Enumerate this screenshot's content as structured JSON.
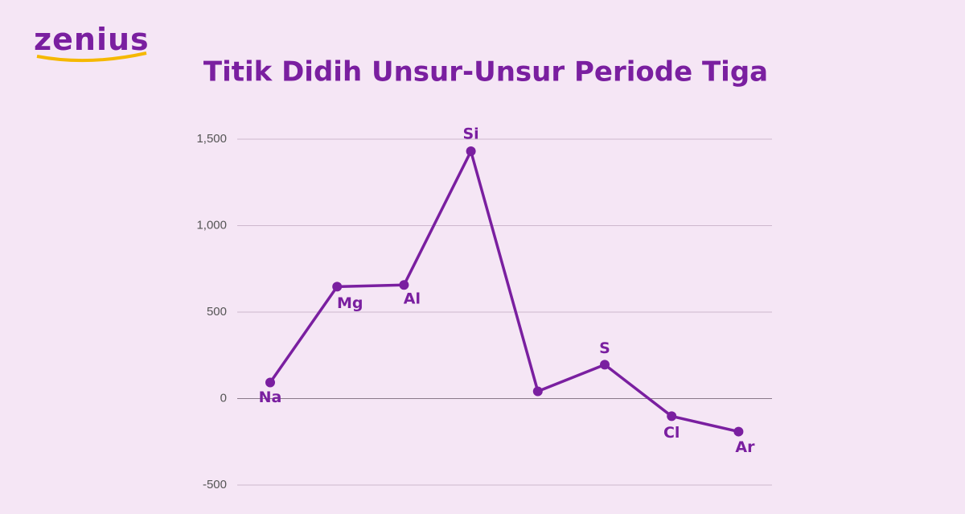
{
  "logo": "zenius",
  "chart_data": {
    "type": "line",
    "title": "Titik Didih Unsur-Unsur Periode Tiga",
    "categories": [
      "Na",
      "Mg",
      "Al",
      "Si",
      null,
      "S",
      "Cl",
      "Ar"
    ],
    "values": [
      93,
      647,
      657,
      1430,
      42,
      196,
      -102,
      -191
    ],
    "color": "#7a1fa0",
    "ylim": [
      -500,
      1500
    ],
    "yticks": [
      {
        "value": 1500,
        "label": "1,500"
      },
      {
        "value": 1000,
        "label": "1,000"
      },
      500,
      0,
      -500
    ],
    "grid": true
  }
}
